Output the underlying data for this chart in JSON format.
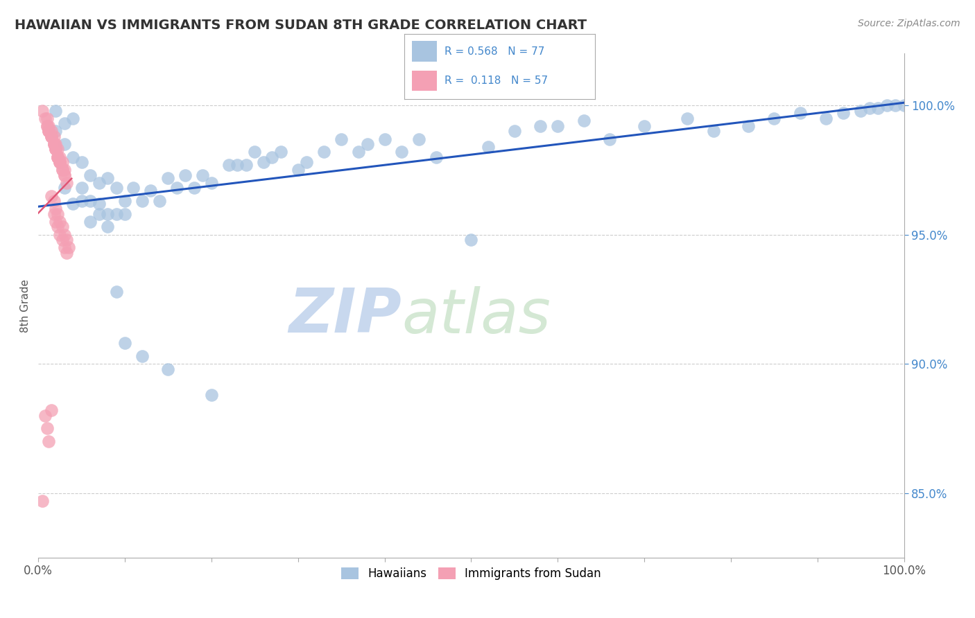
{
  "title": "HAWAIIAN VS IMMIGRANTS FROM SUDAN 8TH GRADE CORRELATION CHART",
  "source": "Source: ZipAtlas.com",
  "ylabel": "8th Grade",
  "right_ytick_labels": [
    "85.0%",
    "90.0%",
    "95.0%",
    "100.0%"
  ],
  "right_ytick_values": [
    0.85,
    0.9,
    0.95,
    1.0
  ],
  "xmin": 0.0,
  "xmax": 1.0,
  "ymin": 0.825,
  "ymax": 1.02,
  "legend_r1": "R = 0.568",
  "legend_n1": "N = 77",
  "legend_r2": "R =  0.118",
  "legend_n2": "N = 57",
  "hawaiian_color": "#a8c4e0",
  "sudan_color": "#f4a0b4",
  "trend_blue": "#2255bb",
  "trend_pink": "#e05575",
  "watermark_zip": "ZIP",
  "watermark_atlas": "atlas",
  "watermark_color": "#c8d8ee",
  "background": "#ffffff",
  "grid_color": "#cccccc",
  "hawaiians_x": [
    0.02,
    0.02,
    0.03,
    0.03,
    0.04,
    0.04,
    0.05,
    0.05,
    0.06,
    0.06,
    0.07,
    0.07,
    0.08,
    0.08,
    0.09,
    0.09,
    0.1,
    0.1,
    0.11,
    0.12,
    0.13,
    0.14,
    0.15,
    0.16,
    0.17,
    0.18,
    0.19,
    0.2,
    0.22,
    0.23,
    0.24,
    0.25,
    0.26,
    0.27,
    0.28,
    0.3,
    0.31,
    0.33,
    0.35,
    0.37,
    0.38,
    0.4,
    0.42,
    0.44,
    0.46,
    0.5,
    0.52,
    0.55,
    0.58,
    0.6,
    0.63,
    0.66,
    0.7,
    0.75,
    0.78,
    0.82,
    0.85,
    0.88,
    0.91,
    0.93,
    0.95,
    0.96,
    0.97,
    0.98,
    0.99,
    1.0,
    0.03,
    0.04,
    0.05,
    0.06,
    0.07,
    0.08,
    0.09,
    0.1,
    0.12,
    0.15,
    0.2
  ],
  "hawaiians_y": [
    0.998,
    0.99,
    0.985,
    0.993,
    0.98,
    0.995,
    0.978,
    0.968,
    0.973,
    0.963,
    0.97,
    0.962,
    0.972,
    0.958,
    0.968,
    0.958,
    0.963,
    0.958,
    0.968,
    0.963,
    0.967,
    0.963,
    0.972,
    0.968,
    0.973,
    0.968,
    0.973,
    0.97,
    0.977,
    0.977,
    0.977,
    0.982,
    0.978,
    0.98,
    0.982,
    0.975,
    0.978,
    0.982,
    0.987,
    0.982,
    0.985,
    0.987,
    0.982,
    0.987,
    0.98,
    0.948,
    0.984,
    0.99,
    0.992,
    0.992,
    0.994,
    0.987,
    0.992,
    0.995,
    0.99,
    0.992,
    0.995,
    0.997,
    0.995,
    0.997,
    0.998,
    0.999,
    0.999,
    1.0,
    1.0,
    1.0,
    0.968,
    0.962,
    0.963,
    0.955,
    0.958,
    0.953,
    0.928,
    0.908,
    0.903,
    0.898,
    0.888
  ],
  "sudan_x": [
    0.005,
    0.008,
    0.01,
    0.012,
    0.015,
    0.018,
    0.02,
    0.022,
    0.025,
    0.01,
    0.012,
    0.015,
    0.018,
    0.02,
    0.022,
    0.025,
    0.028,
    0.03,
    0.01,
    0.012,
    0.015,
    0.018,
    0.02,
    0.022,
    0.025,
    0.028,
    0.03,
    0.012,
    0.015,
    0.018,
    0.02,
    0.022,
    0.025,
    0.028,
    0.03,
    0.033,
    0.015,
    0.018,
    0.02,
    0.022,
    0.025,
    0.028,
    0.03,
    0.033,
    0.035,
    0.018,
    0.02,
    0.022,
    0.025,
    0.028,
    0.03,
    0.033,
    0.015,
    0.008,
    0.01,
    0.012,
    0.005
  ],
  "sudan_y": [
    0.998,
    0.995,
    0.992,
    0.99,
    0.988,
    0.985,
    0.983,
    0.98,
    0.978,
    0.995,
    0.992,
    0.99,
    0.988,
    0.985,
    0.983,
    0.98,
    0.978,
    0.975,
    0.992,
    0.99,
    0.988,
    0.985,
    0.983,
    0.98,
    0.978,
    0.975,
    0.973,
    0.99,
    0.988,
    0.985,
    0.983,
    0.98,
    0.978,
    0.975,
    0.973,
    0.97,
    0.965,
    0.963,
    0.96,
    0.958,
    0.955,
    0.953,
    0.95,
    0.948,
    0.945,
    0.958,
    0.955,
    0.953,
    0.95,
    0.948,
    0.945,
    0.943,
    0.882,
    0.88,
    0.875,
    0.87,
    0.847
  ]
}
